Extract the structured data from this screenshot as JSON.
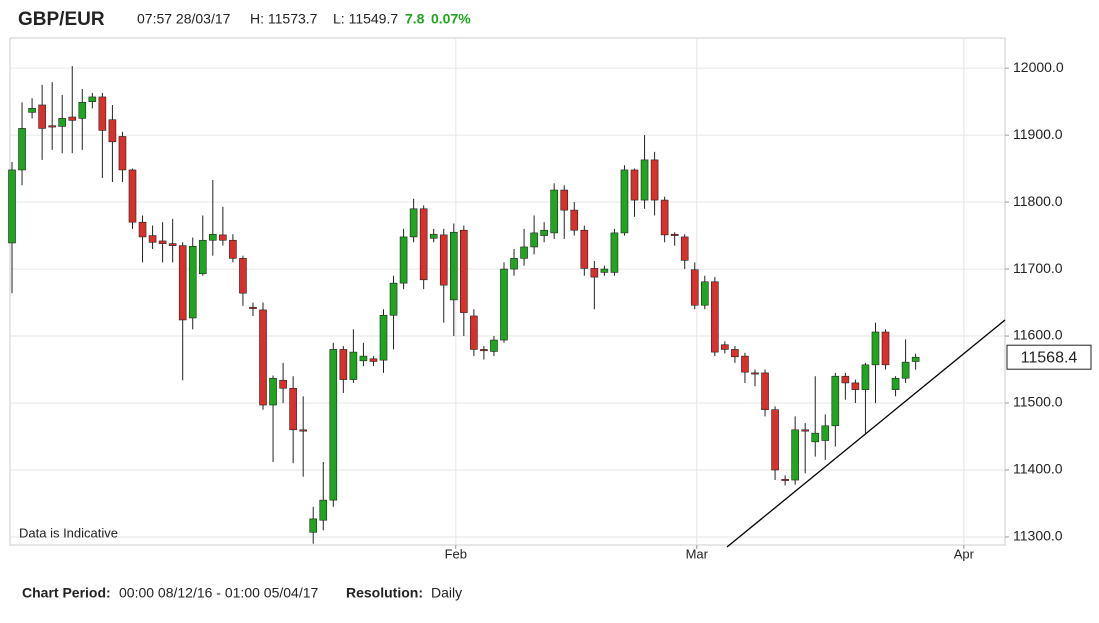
{
  "header": {
    "symbol": "GBP/EUR",
    "time": "07:57 28/03/17",
    "high": "H: 11573.7",
    "low": "L: 11549.7",
    "change": "7.8",
    "change_pct": "0.07%"
  },
  "chart_data": {
    "type": "candlestick",
    "annotation": "Data is Indicative",
    "last_price": 11568.4,
    "up_color": "#1fa51f",
    "down_color": "#d8302a",
    "grid": true,
    "categories": [
      null,
      null,
      null,
      null,
      null,
      null,
      null,
      null,
      null,
      null,
      null,
      null,
      null,
      null,
      null,
      null,
      null,
      null,
      null,
      null,
      null,
      null,
      null,
      null,
      null,
      null,
      null,
      null,
      null,
      null,
      null,
      null,
      null,
      null,
      null,
      null,
      null,
      null,
      null,
      null,
      null,
      null,
      null,
      null,
      null,
      null,
      null,
      null,
      null,
      null,
      null,
      null,
      null,
      null,
      null,
      null,
      null,
      null,
      null,
      null,
      null,
      null,
      null,
      null,
      null,
      null,
      null,
      null,
      null,
      null,
      null,
      null,
      null,
      null,
      null,
      null,
      null,
      null,
      null,
      null,
      null,
      null,
      null,
      null,
      null,
      null,
      null,
      null,
      null,
      null,
      null
    ],
    "open": [
      11739,
      11848,
      11934,
      11945,
      11914,
      11913,
      11927,
      11925,
      11950,
      11957,
      11923,
      11898,
      11848,
      11770,
      11750,
      11742,
      11738,
      11735,
      11627,
      11693,
      11743,
      11751,
      11743,
      11716,
      11643,
      11639,
      11497,
      11534,
      11522,
      11460,
      11307,
      11325,
      11355,
      11580,
      11535,
      11563,
      11566,
      11564,
      11631,
      11679,
      11748,
      11790,
      11746,
      11751,
      11654,
      11758,
      11630,
      11580,
      11577,
      11594,
      11700,
      11716,
      11733,
      11750,
      11754,
      11818,
      11788,
      11758,
      11701,
      11695,
      11695,
      11754,
      11848,
      11803,
      11863,
      11803,
      11752,
      11748,
      11699,
      11646,
      11681,
      11587,
      11580,
      11570,
      11545,
      11545,
      11490,
      11386,
      11385,
      11460,
      11442,
      11444,
      11466,
      11540,
      11530,
      11520,
      11557,
      11606,
      11520,
      11537,
      11562
    ],
    "high": [
      11860,
      11949,
      11955,
      11975,
      11979,
      11960,
      12003,
      11969,
      11963,
      11963,
      11945,
      11905,
      11850,
      11780,
      11765,
      11770,
      11775,
      11740,
      11747,
      11780,
      11833,
      11793,
      11752,
      11720,
      11650,
      11650,
      11541,
      11560,
      11540,
      11510,
      11345,
      11412,
      11590,
      11585,
      11610,
      11590,
      11570,
      11640,
      11690,
      11760,
      11805,
      11795,
      11760,
      11760,
      11768,
      11765,
      11640,
      11585,
      11600,
      11710,
      11730,
      11760,
      11780,
      11770,
      11828,
      11825,
      11800,
      11765,
      11712,
      11705,
      11760,
      11855,
      11850,
      11900,
      11875,
      11808,
      11755,
      11752,
      11710,
      11690,
      11688,
      11592,
      11585,
      11575,
      11550,
      11550,
      11495,
      11392,
      11480,
      11470,
      11540,
      11483,
      11545,
      11545,
      11535,
      11560,
      11620,
      11610,
      11540,
      11595,
      11573.7
    ],
    "low": [
      11664,
      11825,
      11925,
      11863,
      11878,
      11873,
      11873,
      11878,
      11940,
      11836,
      11830,
      11830,
      11760,
      11710,
      11730,
      11710,
      11710,
      11534,
      11610,
      11690,
      11720,
      11735,
      11710,
      11645,
      11630,
      11490,
      11412,
      11500,
      11410,
      11390,
      11290,
      11310,
      11345,
      11515,
      11530,
      11555,
      11555,
      11545,
      11580,
      11670,
      11740,
      11670,
      11740,
      11620,
      11600,
      11600,
      11570,
      11565,
      11570,
      11590,
      11690,
      11705,
      11722,
      11740,
      11745,
      11745,
      11750,
      11690,
      11640,
      11690,
      11690,
      11750,
      11778,
      11790,
      11780,
      11740,
      11735,
      11700,
      11640,
      11640,
      11570,
      11574,
      11560,
      11530,
      11525,
      11480,
      11385,
      11377,
      11378,
      11395,
      11420,
      11415,
      11435,
      11505,
      11500,
      11455,
      11500,
      11550,
      11510,
      11530,
      11549.7
    ],
    "close": [
      11848,
      11910,
      11940,
      11910,
      11912,
      11925,
      11922,
      11949,
      11957,
      11907,
      11890,
      11848,
      11770,
      11748,
      11740,
      11738,
      11735,
      11624,
      11734,
      11743,
      11752,
      11743,
      11716,
      11664,
      11641,
      11497,
      11537,
      11522,
      11460,
      11458,
      11327,
      11355,
      11580,
      11535,
      11576,
      11570,
      11562,
      11631,
      11679,
      11748,
      11790,
      11684,
      11752,
      11676,
      11755,
      11635,
      11580,
      11578,
      11594,
      11700,
      11716,
      11733,
      11754,
      11758,
      11818,
      11788,
      11758,
      11701,
      11688,
      11700,
      11754,
      11848,
      11803,
      11863,
      11803,
      11751,
      11750,
      11713,
      11646,
      11681,
      11576,
      11580,
      11569,
      11546,
      11544,
      11490,
      11400,
      11385,
      11460,
      11458,
      11455,
      11466,
      11540,
      11530,
      11520,
      11557,
      11606,
      11557,
      11537,
      11561,
      11568.4
    ],
    "xlim": [
      -0.2,
      98.9
    ],
    "xticks": [
      {
        "value": 44.2,
        "label": "Feb"
      },
      {
        "value": 68.2,
        "label": "Mar"
      },
      {
        "value": 94.8,
        "label": "Apr"
      }
    ],
    "ylim": [
      11288,
      12045
    ],
    "yticks": [
      {
        "value": 11300,
        "label": "11300.0"
      },
      {
        "value": 11400,
        "label": "11400.0"
      },
      {
        "value": 11500,
        "label": "11500.0"
      },
      {
        "value": 11600,
        "label": "11600.0"
      },
      {
        "value": 11700,
        "label": "11700.0"
      },
      {
        "value": 11800,
        "label": "11800.0"
      },
      {
        "value": 11900,
        "label": "11900.0"
      },
      {
        "value": 12000,
        "label": "12000.0"
      }
    ]
  },
  "footer": {
    "period_label": "Chart Period:",
    "period": "00:00 08/12/16 - 01:00 05/04/17",
    "resolution_label": "Resolution:",
    "resolution": "Daily"
  }
}
